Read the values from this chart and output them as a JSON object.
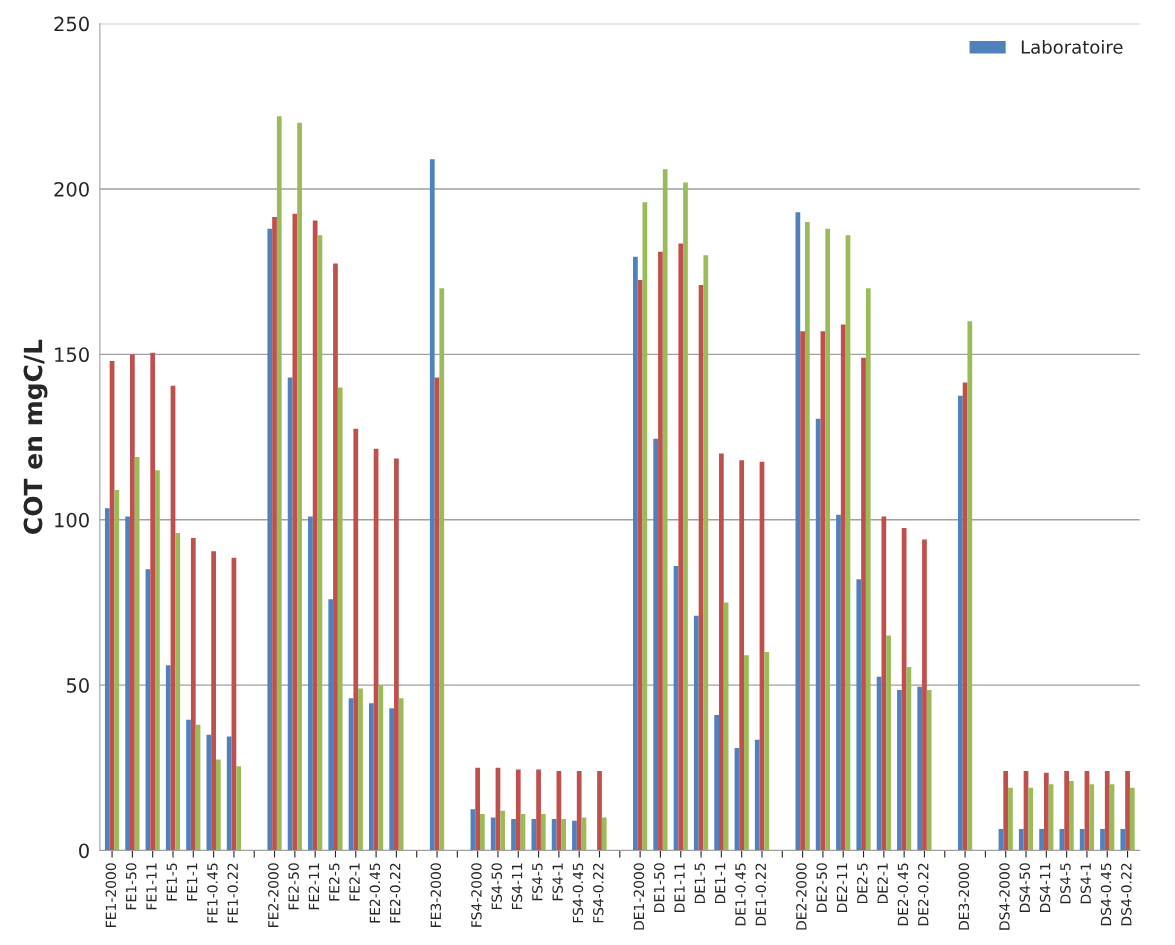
{
  "chart_data": {
    "type": "bar",
    "ylabel": "COT en mgC/L",
    "categories": [
      "FE1-2000",
      "FE1-50",
      "FE1-11",
      "FE1-5",
      "FE1-1",
      "FE1-0.45",
      "FE1-0.22",
      null,
      "FE2-2000",
      "FE2-50",
      "FE2-11",
      "FE2-5",
      "FE2-1",
      "FE2-0.45",
      "FE2-0.22",
      null,
      "FE3-2000",
      null,
      "FS4-2000",
      "FS4-50",
      "FS4-11",
      "FS4-5",
      "FS4-1",
      "FS4-0.45",
      "FS4-0.22",
      null,
      "DE1-2000",
      "DE1-50",
      "DE1-11",
      "DE1-5",
      "DE1-1",
      "DE1-0.45",
      "DE1-0.22",
      null,
      "DE2-2000",
      "DE2-50",
      "DE2-11",
      "DE2-5",
      "DE2-1",
      "DE2-0.45",
      "DE2-0.22",
      null,
      "DE3-2000",
      null,
      "DS4-2000",
      "DS4-50",
      "DS4-11",
      "DS4-5",
      "DS4-1",
      "DS4-0.45",
      "DS4-0.22"
    ],
    "series": [
      {
        "name": "Laboratoire",
        "color": "#4f81bd",
        "values": [
          103.5,
          101,
          85,
          56,
          39.5,
          35,
          34.5,
          null,
          188,
          143,
          101,
          76,
          46,
          44.5,
          43,
          null,
          209,
          null,
          12.5,
          10,
          9.5,
          9.5,
          9.5,
          9,
          null,
          null,
          179.5,
          124.5,
          86,
          71,
          41,
          31,
          33.5,
          null,
          193,
          130.5,
          101.5,
          82,
          52.5,
          48.5,
          49.5,
          null,
          137.5,
          null,
          6.5,
          6.5,
          6.5,
          6.5,
          6.5,
          6.5,
          6.5
        ]
      },
      {
        "color": "#c0504d",
        "values": [
          148,
          150,
          150.5,
          140.5,
          94.5,
          90.5,
          88.5,
          null,
          191.5,
          192.5,
          190.5,
          177.5,
          127.5,
          121.5,
          118.5,
          null,
          143,
          null,
          25,
          25,
          24.5,
          24.5,
          24,
          24,
          24,
          null,
          172.5,
          181,
          183.5,
          171,
          120,
          118,
          117.5,
          null,
          157,
          157,
          159,
          149,
          101,
          97.5,
          94,
          null,
          141.5,
          null,
          24,
          24,
          23.5,
          24,
          24,
          24,
          24
        ]
      },
      {
        "color": "#9bbb59",
        "values": [
          109,
          119,
          115,
          96,
          38,
          27.5,
          25.5,
          null,
          222,
          220,
          186,
          140,
          49,
          50,
          46,
          null,
          170,
          null,
          11,
          12,
          11,
          11,
          9.5,
          10,
          10,
          null,
          196,
          206,
          202,
          180,
          75,
          59,
          60,
          null,
          190,
          188,
          186,
          170,
          65,
          55.5,
          48.5,
          null,
          160,
          null,
          19,
          19,
          20,
          21,
          20,
          20,
          19
        ]
      }
    ],
    "ylim": [
      0,
      250
    ],
    "yticks": [
      0,
      50,
      100,
      150,
      200,
      250
    ],
    "grid": "y",
    "legend": "top right"
  }
}
